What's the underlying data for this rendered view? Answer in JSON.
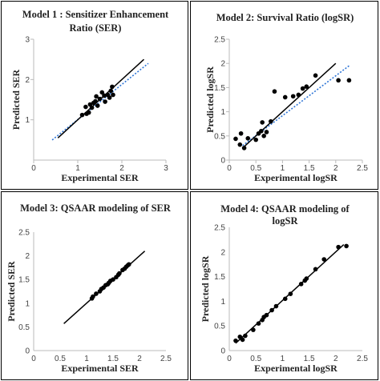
{
  "chart_data": [
    {
      "type": "scatter",
      "title": [
        "Model 1 : Sensitizer Enhancement",
        "Ratio (SER)"
      ],
      "xlabel": "Experimental SER",
      "ylabel": "Predicted SER",
      "xlim": [
        0,
        3
      ],
      "ylim": [
        0,
        3
      ],
      "xticks": [
        0,
        1,
        2,
        3
      ],
      "yticks": [
        1,
        2,
        3
      ],
      "xtick_labels": [
        "0",
        "1",
        "2",
        "3"
      ],
      "ytick_labels": [
        "1",
        "2",
        "3"
      ],
      "points": [
        [
          1.1,
          1.12
        ],
        [
          1.18,
          1.32
        ],
        [
          1.2,
          1.15
        ],
        [
          1.25,
          1.18
        ],
        [
          1.28,
          1.38
        ],
        [
          1.32,
          1.3
        ],
        [
          1.36,
          1.42
        ],
        [
          1.4,
          1.46
        ],
        [
          1.42,
          1.58
        ],
        [
          1.45,
          1.35
        ],
        [
          1.5,
          1.52
        ],
        [
          1.55,
          1.68
        ],
        [
          1.6,
          1.6
        ],
        [
          1.62,
          1.45
        ],
        [
          1.68,
          1.62
        ],
        [
          1.72,
          1.55
        ],
        [
          1.75,
          1.72
        ],
        [
          1.78,
          1.82
        ],
        [
          1.8,
          1.62
        ]
      ],
      "fit_line": [
        [
          0.55,
          0.55
        ],
        [
          2.5,
          2.5
        ]
      ],
      "trend_line": [
        [
          0.42,
          0.5
        ],
        [
          2.6,
          2.4
        ]
      ]
    },
    {
      "type": "scatter",
      "title": [
        "Model 2: Survival Ratio (logSR)"
      ],
      "xlabel": "Experimental logSR",
      "ylabel": "Predicted logSR",
      "xlim": [
        0,
        2.5
      ],
      "ylim": [
        0,
        2.5
      ],
      "xticks": [
        0,
        0.5,
        1,
        1.5,
        2,
        2.5
      ],
      "yticks": [
        0,
        0.5,
        1,
        1.5,
        2,
        2.5
      ],
      "xtick_labels": [
        "0",
        "0.5",
        "1",
        "1.5",
        "2",
        "2.5"
      ],
      "ytick_labels": [
        "0",
        "0.5",
        "1",
        "1.5",
        "2",
        "2.5"
      ],
      "points": [
        [
          0.12,
          0.44
        ],
        [
          0.2,
          0.32
        ],
        [
          0.22,
          0.55
        ],
        [
          0.28,
          0.25
        ],
        [
          0.35,
          0.45
        ],
        [
          0.5,
          0.42
        ],
        [
          0.55,
          0.55
        ],
        [
          0.6,
          0.6
        ],
        [
          0.62,
          0.78
        ],
        [
          0.65,
          0.5
        ],
        [
          0.7,
          0.58
        ],
        [
          0.78,
          0.8
        ],
        [
          0.85,
          1.42
        ],
        [
          1.05,
          1.3
        ],
        [
          1.2,
          1.32
        ],
        [
          1.3,
          1.35
        ],
        [
          1.38,
          1.48
        ],
        [
          1.45,
          1.52
        ],
        [
          1.62,
          1.75
        ],
        [
          2.05,
          1.65
        ],
        [
          2.25,
          1.65
        ]
      ],
      "fit_line": [
        [
          0.25,
          0.25
        ],
        [
          2.0,
          2.0
        ]
      ],
      "trend_line": [
        [
          0.25,
          0.3
        ],
        [
          2.25,
          1.95
        ]
      ]
    },
    {
      "type": "scatter",
      "title": [
        "Model 3: QSAAR modeling of SER"
      ],
      "xlabel": "Experimental SER",
      "ylabel": "Predicted SER",
      "xlim": [
        0,
        2.5
      ],
      "ylim": [
        0,
        2.5
      ],
      "xticks": [
        0,
        0.5,
        1,
        1.5,
        2,
        2.5
      ],
      "yticks": [
        0,
        0.5,
        1,
        1.5,
        2,
        2.5
      ],
      "xtick_labels": [
        "0",
        "0.5",
        "1",
        "1.5",
        "2",
        "2.5"
      ],
      "ytick_labels": [
        "0",
        "0.5",
        "1",
        "1.5",
        "2",
        "2.5"
      ],
      "points": [
        [
          1.1,
          1.1
        ],
        [
          1.12,
          1.14
        ],
        [
          1.18,
          1.2
        ],
        [
          1.25,
          1.25
        ],
        [
          1.28,
          1.3
        ],
        [
          1.32,
          1.33
        ],
        [
          1.36,
          1.38
        ],
        [
          1.4,
          1.4
        ],
        [
          1.42,
          1.43
        ],
        [
          1.45,
          1.47
        ],
        [
          1.5,
          1.5
        ],
        [
          1.56,
          1.55
        ],
        [
          1.6,
          1.6
        ],
        [
          1.62,
          1.63
        ],
        [
          1.68,
          1.7
        ],
        [
          1.72,
          1.73
        ],
        [
          1.75,
          1.77
        ],
        [
          1.78,
          1.8
        ],
        [
          1.8,
          1.82
        ]
      ],
      "fit_line": [
        [
          0.57,
          0.57
        ],
        [
          2.1,
          2.1
        ]
      ]
    },
    {
      "type": "scatter",
      "title": [
        "Model 4: QSAAR modeling of",
        "logSR"
      ],
      "xlabel": "Experimental logSR",
      "ylabel": "Predicted logSR",
      "xlim": [
        0,
        2.5
      ],
      "ylim": [
        0,
        2.5
      ],
      "xticks": [
        0,
        0.5,
        1,
        1.5,
        2,
        2.5
      ],
      "yticks": [
        0,
        0.5,
        1,
        1.5,
        2,
        2.5
      ],
      "xtick_labels": [
        "0",
        "0.5",
        "1",
        "1.5",
        "2",
        "2.5"
      ],
      "ytick_labels": [
        "0",
        "0.5",
        "1",
        "1.5",
        "2",
        "2.5"
      ],
      "points": [
        [
          0.12,
          0.2
        ],
        [
          0.2,
          0.28
        ],
        [
          0.25,
          0.22
        ],
        [
          0.3,
          0.3
        ],
        [
          0.45,
          0.42
        ],
        [
          0.55,
          0.55
        ],
        [
          0.62,
          0.62
        ],
        [
          0.65,
          0.68
        ],
        [
          0.7,
          0.72
        ],
        [
          0.8,
          0.82
        ],
        [
          0.88,
          0.9
        ],
        [
          1.05,
          1.05
        ],
        [
          1.15,
          1.15
        ],
        [
          1.35,
          1.35
        ],
        [
          1.42,
          1.42
        ],
        [
          1.45,
          1.46
        ],
        [
          1.62,
          1.65
        ],
        [
          1.78,
          1.85
        ],
        [
          2.05,
          2.1
        ],
        [
          2.2,
          2.12
        ]
      ],
      "fit_line": [
        [
          0.12,
          0.15
        ],
        [
          2.15,
          2.15
        ]
      ]
    }
  ]
}
